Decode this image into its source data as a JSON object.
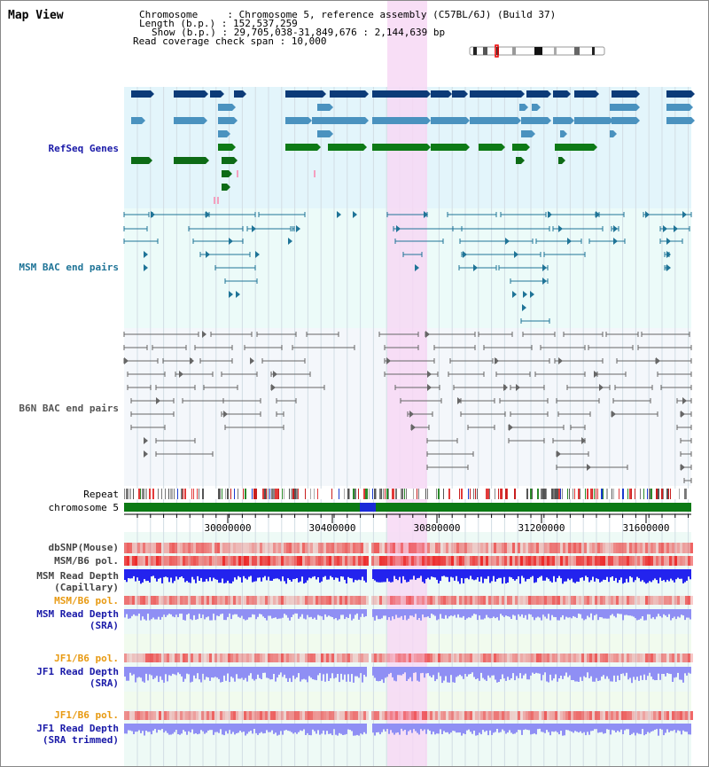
{
  "map_title": "Map View",
  "info": {
    "chromosome": "Chromosome     : Chromosome 5, reference assembly (C57BL/6J) (Build 37)",
    "length": "Length (b.p.) : 152,537,259",
    "show": "Show (b.p.) : 29,705,038-31,849,676 : 2,144,639 bp",
    "coverage": "Read coverage check span : 10,000"
  },
  "tracks": {
    "refseq": "RefSeq Genes",
    "msm_bac": "MSM BAC end pairs",
    "b6n_bac": "B6N BAC end pairs",
    "repeat": "Repeat",
    "chromosome": "chromosome 5",
    "dbsnp": "dbSNP(Mouse)",
    "msm_pol": "MSM/B6 pol.",
    "msm_depth_cap_1": "MSM Read Depth",
    "msm_depth_cap_2": "(Capillary)",
    "msm_pol2": "MSM/B6 pol.",
    "msm_depth_sra_1": "MSM Read Depth",
    "msm_depth_sra_2": "(SRA)",
    "jf1_pol": "JF1/B6 pol.",
    "jf1_depth_sra_1": "JF1 Read Depth",
    "jf1_depth_sra_2": "(SRA)",
    "jf1_pol2": "JF1/B6 pol.",
    "jf1_depth_trim_1": "JF1 Read Depth",
    "jf1_depth_trim_2": "(SRA trimmed)"
  },
  "ruler": {
    "ticks": [
      "30000000",
      "30400000",
      "30800000",
      "31200000",
      "31600000"
    ]
  },
  "colors": {
    "refseq_bg": "#e3f5fb",
    "msm_bg": "#ecfbf9",
    "b6n_bg": "#f4f7fb",
    "highlight": "#f7d8f4",
    "gene_dark": "#0c3b78",
    "gene_mid": "#4a92bf",
    "gene_green": "#0d6b16",
    "msm_pair": "#1f7497",
    "b6n_pair": "#666666",
    "chromosome_bar": "#0c7a14",
    "depth_msm_cap": "#2323ee",
    "depth_sra": "#8f8ff4",
    "label_blue": "#1919a8",
    "label_orange": "#e89a12",
    "label_gray": "#444444"
  }
}
